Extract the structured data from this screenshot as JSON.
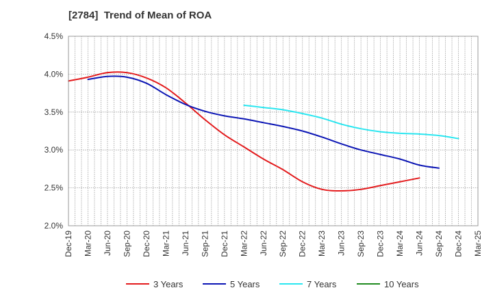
{
  "chart_data": {
    "type": "line",
    "title": "[2784]  Trend of Mean of ROA",
    "xlabel": "",
    "ylabel": "",
    "ylim": [
      2.0,
      4.5
    ],
    "yticks": [
      "2.0%",
      "2.5%",
      "3.0%",
      "3.5%",
      "4.0%",
      "4.5%"
    ],
    "ytick_values": [
      2.0,
      2.5,
      3.0,
      3.5,
      4.0,
      4.5
    ],
    "categories": [
      "Dec-19",
      "Mar-20",
      "Jun-20",
      "Sep-20",
      "Dec-20",
      "Mar-21",
      "Jun-21",
      "Sep-21",
      "Dec-21",
      "Mar-22",
      "Jun-22",
      "Sep-22",
      "Dec-22",
      "Mar-23",
      "Jun-23",
      "Sep-23",
      "Dec-23",
      "Mar-24",
      "Jun-24",
      "Sep-24",
      "Dec-24",
      "Mar-25"
    ],
    "grid": true,
    "legend_position": "bottom",
    "series": [
      {
        "name": "3 Years",
        "color": "#e31a1c",
        "values": [
          3.91,
          3.96,
          4.02,
          4.02,
          3.95,
          3.82,
          3.62,
          3.4,
          3.2,
          3.04,
          2.88,
          2.74,
          2.58,
          2.48,
          2.46,
          2.48,
          2.53,
          2.58,
          2.63,
          null,
          null,
          null
        ]
      },
      {
        "name": "5 Years",
        "color": "#0a14b4",
        "values": [
          null,
          3.93,
          3.97,
          3.96,
          3.88,
          3.73,
          3.6,
          3.51,
          3.45,
          3.41,
          3.36,
          3.31,
          3.25,
          3.17,
          3.08,
          3.0,
          2.94,
          2.88,
          2.8,
          2.76,
          null,
          null
        ]
      },
      {
        "name": "7 Years",
        "color": "#29e6f0",
        "values": [
          null,
          null,
          null,
          null,
          null,
          null,
          null,
          null,
          null,
          3.59,
          3.56,
          3.53,
          3.48,
          3.42,
          3.34,
          3.28,
          3.24,
          3.22,
          3.21,
          3.19,
          3.15,
          null
        ]
      },
      {
        "name": "10 Years",
        "color": "#1f8a1f",
        "values": [
          null,
          null,
          null,
          null,
          null,
          null,
          null,
          null,
          null,
          null,
          null,
          null,
          null,
          null,
          null,
          null,
          null,
          null,
          null,
          null,
          null,
          null
        ]
      }
    ]
  }
}
